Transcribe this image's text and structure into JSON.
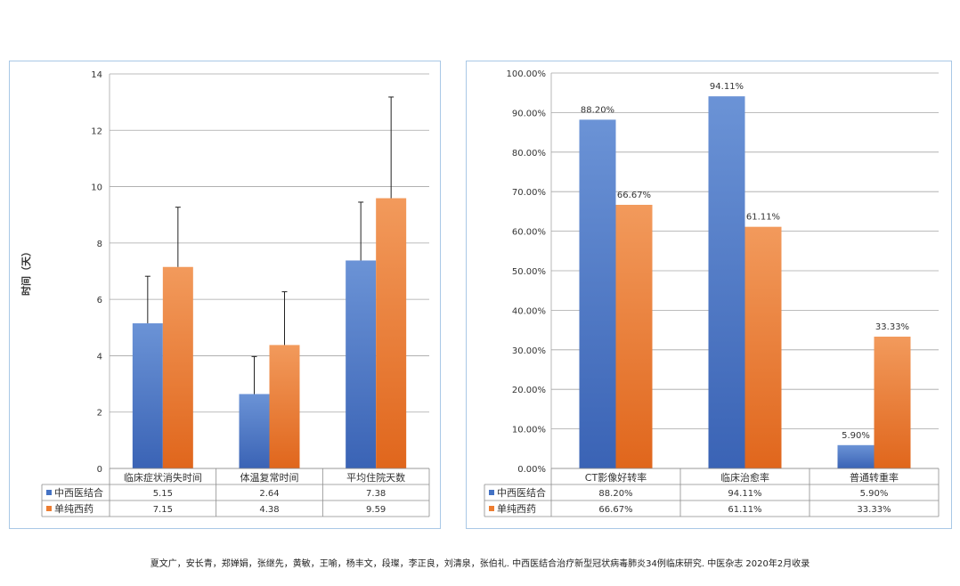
{
  "colors": {
    "series_a": "#4472c4",
    "series_b": "#ed7d31",
    "grid": "#a6a6a6",
    "border": "#a9c8e6"
  },
  "chart_data": [
    {
      "type": "bar",
      "title": "",
      "ylabel": "时间（天）",
      "xlabel": "",
      "ylim": [
        0,
        14
      ],
      "yticks": [
        "0",
        "2",
        "4",
        "6",
        "8",
        "10",
        "12",
        "14"
      ],
      "ytick_values": [
        0,
        2,
        4,
        6,
        8,
        10,
        12,
        14
      ],
      "categories": [
        "临床症状消失时间",
        "体温复常时间",
        "平均住院天数"
      ],
      "series": [
        {
          "name": "中西医结合",
          "values": [
            5.15,
            2.64,
            7.38
          ],
          "error_upper": [
            6.82,
            3.97,
            9.45
          ],
          "labels": [
            "5.15",
            "2.64",
            "7.38"
          ]
        },
        {
          "name": "单纯西药",
          "values": [
            7.15,
            4.38,
            9.59
          ],
          "error_upper": [
            9.27,
            6.27,
            13.18
          ],
          "labels": [
            "7.15",
            "4.38",
            "9.59"
          ]
        }
      ],
      "legend": "data-table"
    },
    {
      "type": "bar",
      "title": "",
      "ylabel": "",
      "xlabel": "",
      "ylim": [
        0,
        100
      ],
      "yticks": [
        "0.00%",
        "10.00%",
        "20.00%",
        "30.00%",
        "40.00%",
        "50.00%",
        "60.00%",
        "70.00%",
        "80.00%",
        "90.00%",
        "100.00%"
      ],
      "ytick_values": [
        0,
        10,
        20,
        30,
        40,
        50,
        60,
        70,
        80,
        90,
        100
      ],
      "categories": [
        "CT影像好转率",
        "临床治愈率",
        "普通转重率"
      ],
      "series": [
        {
          "name": "中西医结合",
          "values": [
            88.2,
            94.11,
            5.9
          ],
          "labels": [
            "88.20%",
            "94.11%",
            "5.90%"
          ]
        },
        {
          "name": "单纯西药",
          "values": [
            66.67,
            61.11,
            33.33
          ],
          "labels": [
            "66.67%",
            "61.11%",
            "33.33%"
          ]
        }
      ],
      "legend": "data-table"
    }
  ],
  "caption": "夏文广，安长青，郑婵娟，张继先，黄敏，王喻，杨丰文，段璨，李正良，刘清泉，张伯礼. 中西医结合治疗新型冠状病毒肺炎34例临床研究. 中医杂志 2020年2月收录"
}
